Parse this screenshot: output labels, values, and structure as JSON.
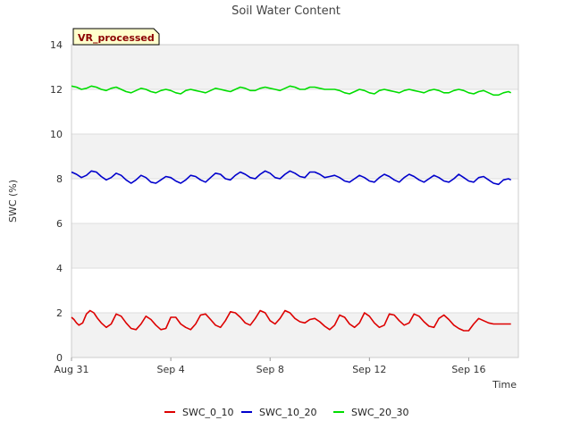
{
  "chart_data": {
    "type": "line",
    "title": "Soil Water Content",
    "xlabel": "Time",
    "ylabel": "SWC (%)",
    "badge": "VR_processed",
    "ylim": [
      0,
      14
    ],
    "yticks": [
      0,
      2,
      4,
      6,
      8,
      10,
      12,
      14
    ],
    "xlim_days": [
      0,
      18
    ],
    "xticks": [
      {
        "day": 0,
        "label": "Aug 31"
      },
      {
        "day": 4,
        "label": "Sep 4"
      },
      {
        "day": 8,
        "label": "Sep 8"
      },
      {
        "day": 12,
        "label": "Sep 12"
      },
      {
        "day": 16,
        "label": "Sep 16"
      }
    ],
    "grid_bands": true,
    "legend_position": "bottom",
    "series": [
      {
        "name": "SWC_0_10",
        "color": "#dd0000",
        "x": [
          0.0,
          0.1,
          0.2,
          0.3,
          0.45,
          0.6,
          0.75,
          0.9,
          1.05,
          1.2,
          1.4,
          1.6,
          1.8,
          2.0,
          2.2,
          2.4,
          2.6,
          2.8,
          3.0,
          3.2,
          3.4,
          3.6,
          3.8,
          4.0,
          4.2,
          4.4,
          4.6,
          4.8,
          5.0,
          5.2,
          5.4,
          5.6,
          5.8,
          6.0,
          6.2,
          6.4,
          6.6,
          6.8,
          7.0,
          7.2,
          7.4,
          7.6,
          7.8,
          8.0,
          8.2,
          8.4,
          8.6,
          8.8,
          9.0,
          9.2,
          9.4,
          9.6,
          9.8,
          10.0,
          10.2,
          10.4,
          10.6,
          10.8,
          11.0,
          11.2,
          11.4,
          11.6,
          11.8,
          12.0,
          12.2,
          12.4,
          12.6,
          12.8,
          13.0,
          13.2,
          13.4,
          13.6,
          13.8,
          14.0,
          14.2,
          14.4,
          14.6,
          14.8,
          15.0,
          15.2,
          15.4,
          15.6,
          15.8,
          16.0,
          16.2,
          16.4,
          16.6,
          16.8,
          17.0,
          17.2,
          17.4,
          17.6,
          17.7
        ],
        "values": [
          1.8,
          1.7,
          1.55,
          1.45,
          1.55,
          1.95,
          2.1,
          2.0,
          1.75,
          1.55,
          1.35,
          1.5,
          1.95,
          1.85,
          1.55,
          1.3,
          1.25,
          1.5,
          1.85,
          1.7,
          1.45,
          1.25,
          1.3,
          1.8,
          1.8,
          1.5,
          1.35,
          1.25,
          1.5,
          1.9,
          1.95,
          1.7,
          1.45,
          1.35,
          1.65,
          2.05,
          2.0,
          1.8,
          1.55,
          1.45,
          1.75,
          2.1,
          2.0,
          1.65,
          1.5,
          1.75,
          2.1,
          2.0,
          1.75,
          1.6,
          1.55,
          1.7,
          1.75,
          1.6,
          1.4,
          1.25,
          1.45,
          1.9,
          1.8,
          1.5,
          1.35,
          1.55,
          2.0,
          1.85,
          1.55,
          1.35,
          1.45,
          1.95,
          1.9,
          1.65,
          1.45,
          1.55,
          1.95,
          1.85,
          1.6,
          1.4,
          1.35,
          1.75,
          1.9,
          1.7,
          1.45,
          1.3,
          1.2,
          1.2,
          1.5,
          1.75,
          1.65,
          1.55,
          1.5,
          1.5,
          1.5,
          1.5,
          1.5
        ]
      },
      {
        "name": "SWC_10_20",
        "color": "#0000cc",
        "x": [
          0.0,
          0.2,
          0.4,
          0.6,
          0.8,
          1.0,
          1.2,
          1.4,
          1.6,
          1.8,
          2.0,
          2.2,
          2.4,
          2.6,
          2.8,
          3.0,
          3.2,
          3.4,
          3.6,
          3.8,
          4.0,
          4.2,
          4.4,
          4.6,
          4.8,
          5.0,
          5.2,
          5.4,
          5.6,
          5.8,
          6.0,
          6.2,
          6.4,
          6.6,
          6.8,
          7.0,
          7.2,
          7.4,
          7.6,
          7.8,
          8.0,
          8.2,
          8.4,
          8.6,
          8.8,
          9.0,
          9.2,
          9.4,
          9.6,
          9.8,
          10.0,
          10.2,
          10.4,
          10.6,
          10.8,
          11.0,
          11.2,
          11.4,
          11.6,
          11.8,
          12.0,
          12.2,
          12.4,
          12.6,
          12.8,
          13.0,
          13.2,
          13.4,
          13.6,
          13.8,
          14.0,
          14.2,
          14.4,
          14.6,
          14.8,
          15.0,
          15.2,
          15.4,
          15.6,
          15.8,
          16.0,
          16.2,
          16.4,
          16.6,
          16.8,
          17.0,
          17.2,
          17.4,
          17.6,
          17.7
        ],
        "values": [
          8.3,
          8.2,
          8.05,
          8.15,
          8.35,
          8.3,
          8.1,
          7.95,
          8.05,
          8.25,
          8.15,
          7.95,
          7.8,
          7.95,
          8.15,
          8.05,
          7.85,
          7.8,
          7.95,
          8.1,
          8.05,
          7.9,
          7.8,
          7.95,
          8.15,
          8.1,
          7.95,
          7.85,
          8.05,
          8.25,
          8.2,
          8.0,
          7.95,
          8.15,
          8.3,
          8.2,
          8.05,
          8.0,
          8.2,
          8.35,
          8.25,
          8.05,
          8.0,
          8.2,
          8.35,
          8.25,
          8.1,
          8.05,
          8.3,
          8.3,
          8.2,
          8.05,
          8.1,
          8.15,
          8.05,
          7.9,
          7.85,
          8.0,
          8.15,
          8.05,
          7.9,
          7.85,
          8.05,
          8.2,
          8.1,
          7.95,
          7.85,
          8.05,
          8.2,
          8.1,
          7.95,
          7.85,
          8.0,
          8.15,
          8.05,
          7.9,
          7.85,
          8.0,
          8.2,
          8.05,
          7.9,
          7.85,
          8.05,
          8.1,
          7.95,
          7.8,
          7.75,
          7.95,
          8.0,
          7.95
        ]
      },
      {
        "name": "SWC_20_30",
        "color": "#00dd00",
        "x": [
          0.0,
          0.2,
          0.4,
          0.6,
          0.8,
          1.0,
          1.2,
          1.4,
          1.6,
          1.8,
          2.0,
          2.2,
          2.4,
          2.6,
          2.8,
          3.0,
          3.2,
          3.4,
          3.6,
          3.8,
          4.0,
          4.2,
          4.4,
          4.6,
          4.8,
          5.0,
          5.2,
          5.4,
          5.6,
          5.8,
          6.0,
          6.2,
          6.4,
          6.6,
          6.8,
          7.0,
          7.2,
          7.4,
          7.6,
          7.8,
          8.0,
          8.2,
          8.4,
          8.6,
          8.8,
          9.0,
          9.2,
          9.4,
          9.6,
          9.8,
          10.0,
          10.2,
          10.4,
          10.6,
          10.8,
          11.0,
          11.2,
          11.4,
          11.6,
          11.8,
          12.0,
          12.2,
          12.4,
          12.6,
          12.8,
          13.0,
          13.2,
          13.4,
          13.6,
          13.8,
          14.0,
          14.2,
          14.4,
          14.6,
          14.8,
          15.0,
          15.2,
          15.4,
          15.6,
          15.8,
          16.0,
          16.2,
          16.4,
          16.6,
          16.8,
          17.0,
          17.2,
          17.4,
          17.6,
          17.7
        ],
        "values": [
          12.15,
          12.1,
          12.0,
          12.05,
          12.15,
          12.1,
          12.0,
          11.95,
          12.05,
          12.1,
          12.0,
          11.9,
          11.85,
          11.95,
          12.05,
          12.0,
          11.9,
          11.85,
          11.95,
          12.0,
          11.95,
          11.85,
          11.8,
          11.95,
          12.0,
          11.95,
          11.9,
          11.85,
          11.95,
          12.05,
          12.0,
          11.95,
          11.9,
          12.0,
          12.1,
          12.05,
          11.95,
          11.95,
          12.05,
          12.1,
          12.05,
          12.0,
          11.95,
          12.05,
          12.15,
          12.1,
          12.0,
          12.0,
          12.1,
          12.1,
          12.05,
          12.0,
          12.0,
          12.0,
          11.95,
          11.85,
          11.8,
          11.9,
          12.0,
          11.95,
          11.85,
          11.8,
          11.95,
          12.0,
          11.95,
          11.9,
          11.85,
          11.95,
          12.0,
          11.95,
          11.9,
          11.85,
          11.95,
          12.0,
          11.95,
          11.85,
          11.85,
          11.95,
          12.0,
          11.95,
          11.85,
          11.8,
          11.9,
          11.95,
          11.85,
          11.75,
          11.75,
          11.85,
          11.9,
          11.85
        ]
      }
    ]
  }
}
